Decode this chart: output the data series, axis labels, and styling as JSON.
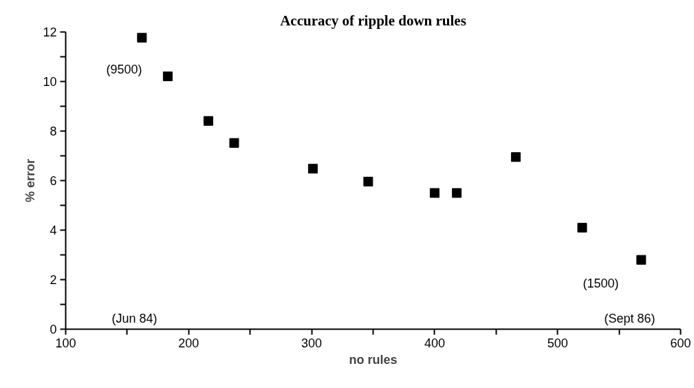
{
  "chart_data": {
    "type": "scatter",
    "title": "Accuracy of ripple down rules",
    "xlabel": "no rules",
    "ylabel": "% error",
    "x": [
      162,
      183,
      216,
      237,
      301,
      346,
      400,
      418,
      466,
      520,
      568
    ],
    "series": [
      {
        "color": "#000000",
        "values": [
          11.77,
          10.21,
          8.41,
          7.52,
          6.48,
          5.96,
          5.5,
          5.5,
          6.95,
          4.1,
          2.8
        ]
      }
    ],
    "marker": "square",
    "grid": false,
    "xlim": [
      100,
      600
    ],
    "xticks": [
      100,
      {
        "value": 150,
        "label": null
      },
      200,
      {
        "value": 250,
        "label": null
      },
      300,
      {
        "value": 350,
        "label": null
      },
      400,
      {
        "value": 450,
        "label": null
      },
      500,
      {
        "value": 550,
        "label": null
      },
      600
    ],
    "ylim": [
      0,
      12
    ],
    "yticks": [
      0,
      {
        "value": 1,
        "label": null
      },
      2,
      {
        "value": 3,
        "label": null
      },
      4,
      {
        "value": 5,
        "label": null
      },
      6,
      {
        "value": 7,
        "label": null
      },
      8,
      {
        "value": 9,
        "label": null
      },
      10,
      {
        "value": 11,
        "label": null
      },
      12
    ],
    "annotations": [
      "(9500)",
      "(Jun 84)",
      "(1500)",
      "(Sept 86)"
    ]
  }
}
